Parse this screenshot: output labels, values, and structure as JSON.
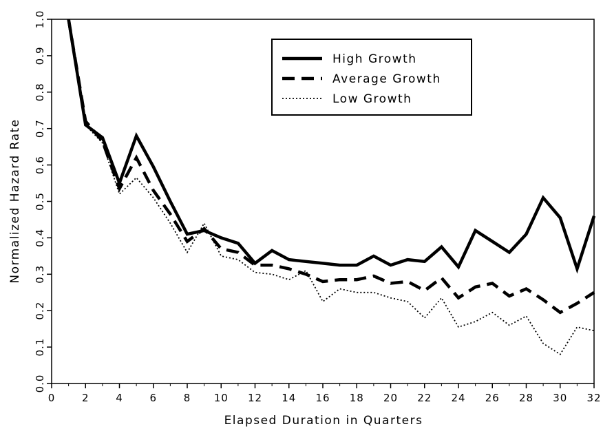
{
  "chart_data": {
    "type": "line",
    "title": "",
    "xlabel": "Elapsed Duration in Quarters",
    "ylabel": "Normalized Hazard Rate",
    "xlim": [
      0,
      32
    ],
    "ylim": [
      0,
      1.0
    ],
    "xticks": [
      "0",
      "2",
      "4",
      "6",
      "8",
      "10",
      "12",
      "14",
      "16",
      "18",
      "20",
      "22",
      "24",
      "26",
      "28",
      "30",
      "32"
    ],
    "yticks": [
      "0.0",
      "0.1",
      "0.2",
      "0.3",
      "0.4",
      "0.5",
      "0.6",
      "0.7",
      "0.8",
      "0.9",
      "1.0"
    ],
    "grid": false,
    "legend_position": "top-right",
    "x": [
      1,
      2,
      3,
      4,
      5,
      6,
      7,
      8,
      9,
      10,
      11,
      12,
      13,
      14,
      15,
      16,
      17,
      18,
      19,
      20,
      21,
      22,
      23,
      24,
      25,
      26,
      27,
      28,
      29,
      30,
      31,
      32
    ],
    "series": [
      {
        "name": "High Growth",
        "style": "solid",
        "values": [
          1.0,
          0.71,
          0.675,
          0.55,
          0.68,
          0.595,
          0.5,
          0.41,
          0.42,
          0.4,
          0.385,
          0.33,
          0.365,
          0.34,
          0.335,
          0.33,
          0.325,
          0.325,
          0.35,
          0.325,
          0.34,
          0.335,
          0.375,
          0.32,
          0.42,
          0.39,
          0.36,
          0.41,
          0.51,
          0.455,
          0.315,
          0.46
        ]
      },
      {
        "name": "Average Growth",
        "style": "dashed",
        "values": [
          1.0,
          0.72,
          0.665,
          0.535,
          0.62,
          0.53,
          0.465,
          0.39,
          0.425,
          0.37,
          0.36,
          0.325,
          0.325,
          0.315,
          0.3,
          0.28,
          0.285,
          0.285,
          0.295,
          0.275,
          0.28,
          0.255,
          0.29,
          0.235,
          0.265,
          0.275,
          0.24,
          0.26,
          0.23,
          0.195,
          0.22,
          0.25
        ]
      },
      {
        "name": "Low Growth",
        "style": "dotted",
        "values": [
          1.0,
          0.71,
          0.66,
          0.52,
          0.565,
          0.51,
          0.44,
          0.36,
          0.44,
          0.35,
          0.34,
          0.305,
          0.3,
          0.285,
          0.31,
          0.225,
          0.26,
          0.25,
          0.25,
          0.235,
          0.225,
          0.18,
          0.235,
          0.155,
          0.17,
          0.195,
          0.16,
          0.185,
          0.11,
          0.08,
          0.155,
          0.145
        ]
      }
    ]
  }
}
